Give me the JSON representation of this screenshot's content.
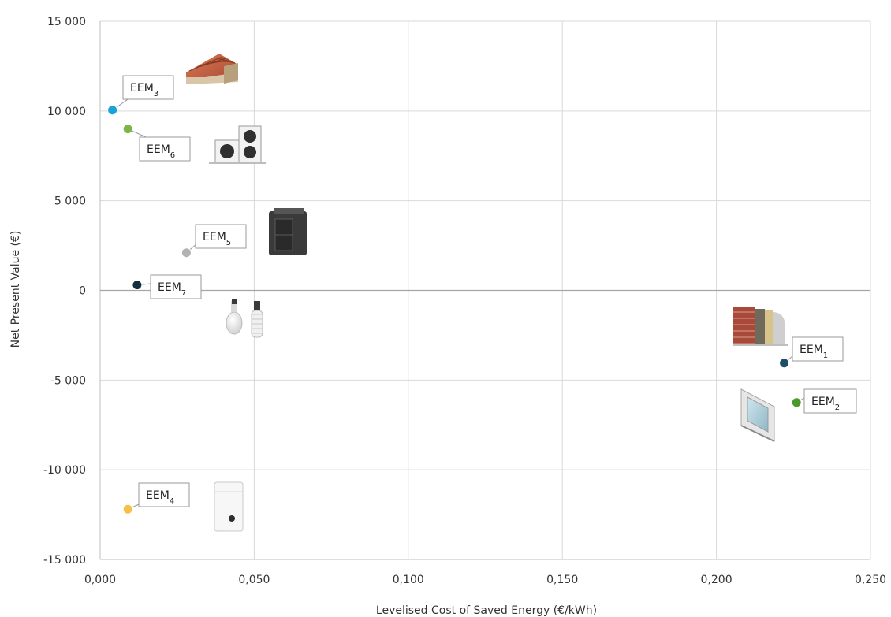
{
  "chart_data": {
    "type": "scatter",
    "title": "",
    "xlabel": "Levelised Cost of Saved Energy (€/kWh)",
    "ylabel": "Net Present Value (€)",
    "xlim": [
      0,
      0.25
    ],
    "ylim": [
      -15000,
      15000
    ],
    "x_ticks": [
      "0,000",
      "0,050",
      "0,100",
      "0,150",
      "0,200",
      "0,250"
    ],
    "y_ticks": [
      "15 000",
      "10 000",
      "5 000",
      "0",
      "-5 000",
      "-10 000",
      "-15 000"
    ],
    "grid": true,
    "legend": "none",
    "points": [
      {
        "label": "EEM",
        "sub": "1",
        "x": 0.222,
        "y": -4050,
        "color": "#1f4e6b",
        "icon": "brick-wall-insulation-icon"
      },
      {
        "label": "EEM",
        "sub": "2",
        "x": 0.226,
        "y": -6250,
        "color": "#4a9a2a",
        "icon": "window-frame-icon"
      },
      {
        "label": "EEM",
        "sub": "3",
        "x": 0.004,
        "y": 10050,
        "color": "#1aa3d6",
        "icon": "roof-insulation-icon"
      },
      {
        "label": "EEM",
        "sub": "4",
        "x": 0.009,
        "y": -12200,
        "color": "#f5c04a",
        "icon": "boiler-icon"
      },
      {
        "label": "EEM",
        "sub": "5",
        "x": 0.028,
        "y": 2100,
        "color": "#b3b3b3",
        "icon": "pellet-boiler-icon"
      },
      {
        "label": "EEM",
        "sub": "6",
        "x": 0.009,
        "y": 9000,
        "color": "#7ab648",
        "icon": "heat-pump-icon"
      },
      {
        "label": "EEM",
        "sub": "7",
        "x": 0.012,
        "y": 300,
        "color": "#13303f",
        "icon": "light-bulbs-icon"
      }
    ]
  }
}
